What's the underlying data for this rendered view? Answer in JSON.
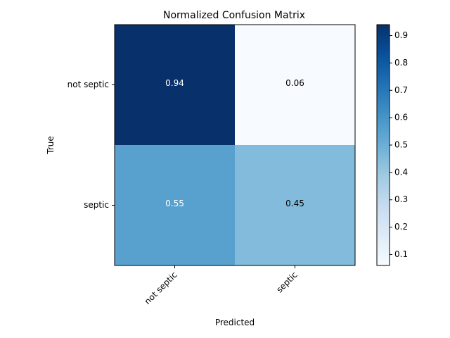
{
  "chart_data": {
    "type": "heatmap",
    "title": "Normalized Confusion Matrix",
    "xlabel": "Predicted",
    "ylabel": "True",
    "x_categories": [
      "not septic",
      "septic"
    ],
    "y_categories": [
      "not septic",
      "septic"
    ],
    "values": [
      [
        0.94,
        0.06
      ],
      [
        0.55,
        0.45
      ]
    ],
    "cell_labels": [
      [
        "0.94",
        "0.06"
      ],
      [
        "0.55",
        "0.45"
      ]
    ],
    "colormap": "Blues",
    "colorbar": {
      "range": [
        0.06,
        0.94
      ],
      "ticks": [
        0.1,
        0.2,
        0.3,
        0.4,
        0.5,
        0.6,
        0.7,
        0.8,
        0.9
      ],
      "tick_labels": [
        "0.1",
        "0.2",
        "0.3",
        "0.4",
        "0.5",
        "0.6",
        "0.7",
        "0.8",
        "0.9"
      ]
    },
    "cell_text_colors": {
      "light": "#ffffff",
      "dark": "#000000"
    },
    "grid": false
  }
}
